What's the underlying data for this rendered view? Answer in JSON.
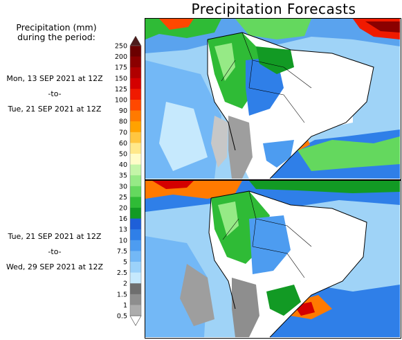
{
  "title": "Precipitation Forecasts",
  "subtitle_lines": [
    "Precipitation (mm)",
    "during the period:"
  ],
  "periods": [
    {
      "start": "Mon, 13 SEP 2021 at 12Z",
      "sep": "-to-",
      "end": "Tue, 21 SEP 2021 at 12Z"
    },
    {
      "start": "Tue, 21 SEP 2021 at 12Z",
      "sep": "-to-",
      "end": "Wed, 29 SEP 2021 at 12Z"
    }
  ],
  "colorbar": {
    "labels": [
      "250",
      "200",
      "175",
      "150",
      "125",
      "100",
      "90",
      "80",
      "70",
      "60",
      "50",
      "40",
      "35",
      "30",
      "25",
      "20",
      "16",
      "13",
      "10",
      "7.5",
      "5",
      "2.5",
      "2",
      "1.5",
      "1",
      "0.5"
    ],
    "colors": [
      "#6b0000",
      "#8b0000",
      "#b00000",
      "#d40000",
      "#f01a00",
      "#ff4800",
      "#ff7a00",
      "#ffa200",
      "#ffc640",
      "#ffe88a",
      "#fffcc8",
      "#c4f5a8",
      "#96ea86",
      "#64d85e",
      "#2fbb36",
      "#129a24",
      "#1e5fd8",
      "#2f7fe8",
      "#4d9cf0",
      "#73b8f6",
      "#9cd2fa",
      "#c6e9fd",
      "#6e6e6e",
      "#8e8e8e",
      "#acacac",
      "#cbcbcb"
    ],
    "top_arrow_color": "#4d1c1c",
    "bottom_arrow_color": "#ffffff"
  },
  "maps": [
    {
      "label": "forecast-map-period-1"
    },
    {
      "label": "forecast-map-period-2"
    }
  ]
}
